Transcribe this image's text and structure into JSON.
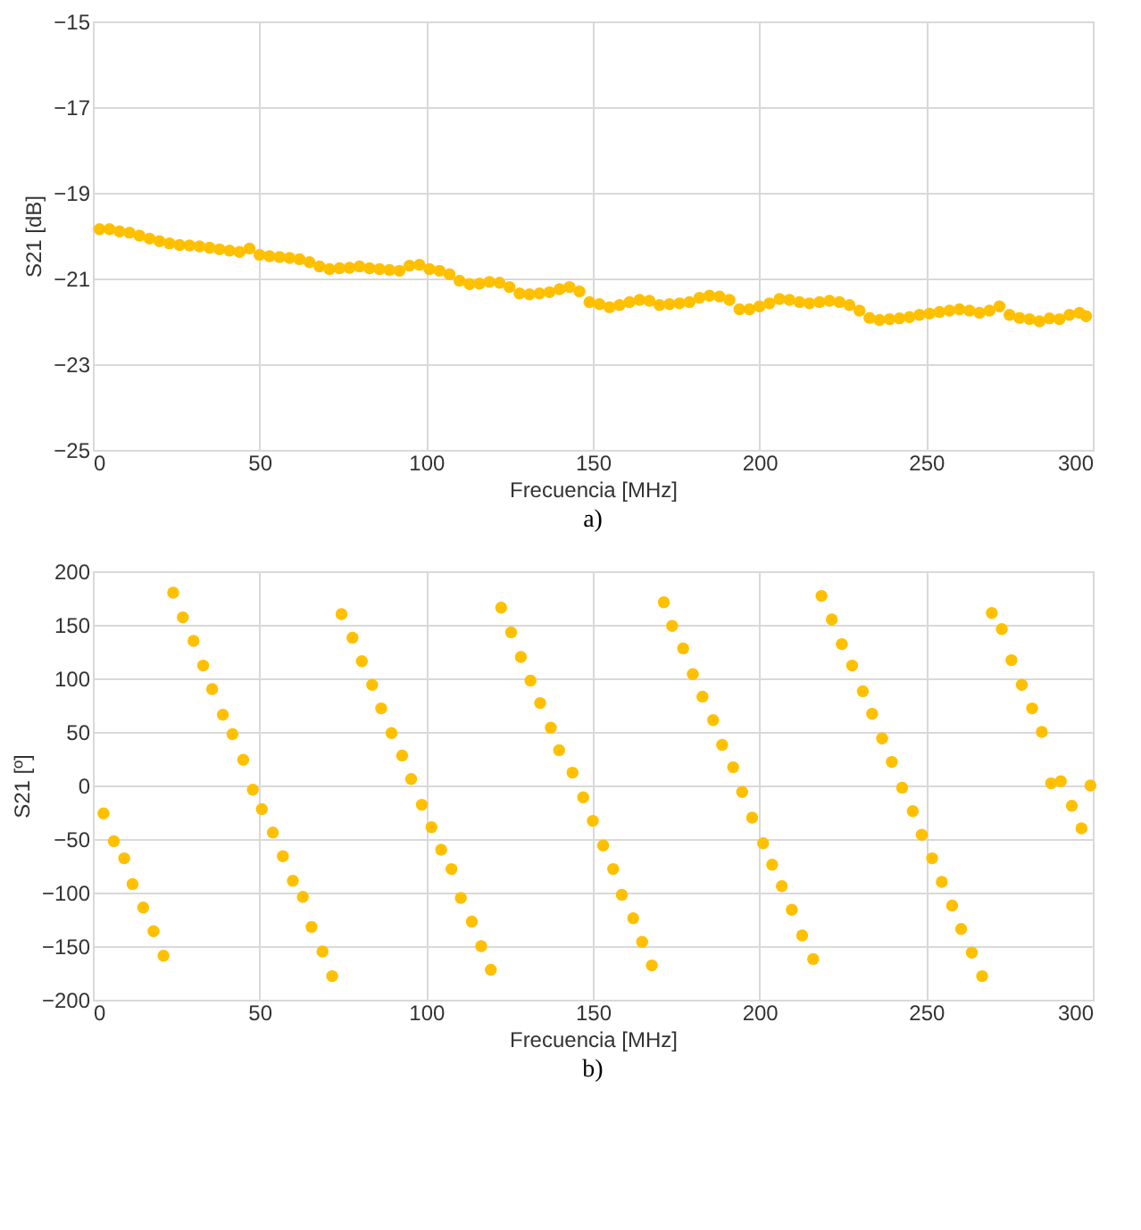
{
  "chart_data": [
    {
      "type": "scatter",
      "xlabel": "Frecuencia [MHz]",
      "ylabel": "S21 [dB]",
      "annotations": [
        "a)"
      ],
      "color": "#ffc000",
      "marker": "circle",
      "grid": true,
      "xlim": [
        0,
        300
      ],
      "xticks": [
        0,
        50,
        100,
        150,
        200,
        250,
        300
      ],
      "ylim": [
        -25,
        -15
      ],
      "yticks": [
        -25,
        -23,
        -21,
        -19,
        -17,
        -15
      ],
      "x": [
        2,
        5,
        8,
        11,
        14,
        17,
        20,
        23,
        26,
        29,
        32,
        35,
        38,
        41,
        44,
        47,
        50,
        53,
        56,
        59,
        62,
        65,
        68,
        71,
        74,
        77,
        80,
        83,
        86,
        89,
        92,
        95,
        98,
        101,
        104,
        107,
        110,
        113,
        116,
        119,
        122,
        125,
        128,
        131,
        134,
        137,
        140,
        143,
        146,
        149,
        152,
        155,
        158,
        161,
        164,
        167,
        170,
        173,
        176,
        179,
        182,
        185,
        188,
        191,
        194,
        197,
        200,
        203,
        206,
        209,
        212,
        215,
        218,
        221,
        224,
        227,
        230,
        233,
        236,
        239,
        242,
        245,
        248,
        251,
        254,
        257,
        260,
        263,
        266,
        269,
        272,
        275,
        278,
        281,
        284,
        287,
        290,
        293,
        296,
        298
      ],
      "values": [
        -19.85,
        -19.85,
        -19.9,
        -19.93,
        -20.0,
        -20.07,
        -20.13,
        -20.18,
        -20.22,
        -20.23,
        -20.25,
        -20.28,
        -20.32,
        -20.35,
        -20.38,
        -20.3,
        -20.45,
        -20.48,
        -20.5,
        -20.52,
        -20.55,
        -20.62,
        -20.72,
        -20.78,
        -20.76,
        -20.75,
        -20.72,
        -20.76,
        -20.78,
        -20.8,
        -20.82,
        -20.7,
        -20.68,
        -20.78,
        -20.82,
        -20.9,
        -21.05,
        -21.13,
        -21.12,
        -21.08,
        -21.1,
        -21.2,
        -21.35,
        -21.37,
        -21.35,
        -21.32,
        -21.25,
        -21.2,
        -21.3,
        -21.55,
        -21.6,
        -21.67,
        -21.62,
        -21.55,
        -21.5,
        -21.52,
        -21.62,
        -21.6,
        -21.58,
        -21.55,
        -21.45,
        -21.4,
        -21.42,
        -21.5,
        -21.72,
        -21.72,
        -21.65,
        -21.58,
        -21.48,
        -21.5,
        -21.55,
        -21.58,
        -21.55,
        -21.52,
        -21.55,
        -21.62,
        -21.75,
        -21.92,
        -21.97,
        -21.95,
        -21.93,
        -21.9,
        -21.85,
        -21.82,
        -21.78,
        -21.75,
        -21.72,
        -21.75,
        -21.8,
        -21.75,
        -21.65,
        -21.85,
        -21.92,
        -21.95,
        -22.0,
        -21.93,
        -21.95,
        -21.85,
        -21.8,
        -21.88
      ]
    },
    {
      "type": "scatter",
      "xlabel": "Frecuencia [MHz]",
      "ylabel": "S21 [º]",
      "annotations": [
        "b)"
      ],
      "color": "#ffc000",
      "marker": "circle",
      "grid": true,
      "xlim": [
        0,
        300
      ],
      "xticks": [
        0,
        50,
        100,
        150,
        200,
        250,
        300
      ],
      "ylim": [
        -200,
        200
      ],
      "yticks": [
        -200,
        -150,
        -100,
        -50,
        0,
        50,
        100,
        150,
        200
      ],
      "x": [
        3.2,
        6.3,
        9.4,
        11.9,
        15.1,
        18.2,
        21.2,
        24.1,
        27,
        30.2,
        33.1,
        35.8,
        39,
        41.9,
        45.1,
        48,
        50.7,
        54,
        57,
        60,
        63,
        65.6,
        68.9,
        71.8,
        74.6,
        77.9,
        80.7,
        83.8,
        86.5,
        89.6,
        92.8,
        95.5,
        98.7,
        101.6,
        104.5,
        107.6,
        110.4,
        113.7,
        116.5,
        119.4,
        122.5,
        125.5,
        128.4,
        131.3,
        134.2,
        137.4,
        139.9,
        143.9,
        147.1,
        150,
        153.1,
        156.1,
        158.7,
        162.1,
        164.8,
        167.7,
        171.3,
        173.8,
        177.1,
        180,
        182.9,
        186.1,
        188.8,
        192.1,
        194.8,
        197.8,
        201.1,
        203.8,
        206.7,
        209.7,
        212.8,
        216.1,
        218.6,
        221.7,
        224.7,
        227.8,
        231,
        233.8,
        236.8,
        239.7,
        242.8,
        246,
        248.7,
        251.8,
        254.7,
        257.8,
        260.5,
        263.7,
        266.8,
        269.7,
        272.7,
        275.6,
        278.7,
        281.8,
        284.7,
        287.5,
        290.4,
        293.7,
        296.6,
        299.3
      ],
      "values": [
        -26,
        -52,
        -68,
        -92,
        -114,
        -136,
        -159,
        180,
        157,
        135,
        112,
        90,
        66,
        48,
        24,
        -4,
        -22,
        -44,
        -66,
        -89,
        -104,
        -132,
        -155,
        -178,
        160,
        138,
        116,
        94,
        72,
        49,
        28,
        6,
        -18,
        -39,
        -60,
        -78,
        -105,
        -127,
        -150,
        -172,
        166,
        143,
        120,
        98,
        77,
        54,
        33,
        12,
        -11,
        -33,
        -56,
        -78,
        -102,
        -124,
        -146,
        -168,
        171,
        149,
        128,
        104,
        83,
        61,
        38,
        17,
        -6,
        -30,
        -54,
        -74,
        -94,
        -116,
        -140,
        -162,
        177,
        155,
        132,
        112,
        88,
        67,
        44,
        22,
        -2,
        -24,
        -46,
        -68,
        -90,
        -112,
        -134,
        -156,
        -178,
        161,
        146,
        117,
        94,
        72,
        50,
        2,
        4,
        -19,
        -40,
        0
      ]
    }
  ]
}
